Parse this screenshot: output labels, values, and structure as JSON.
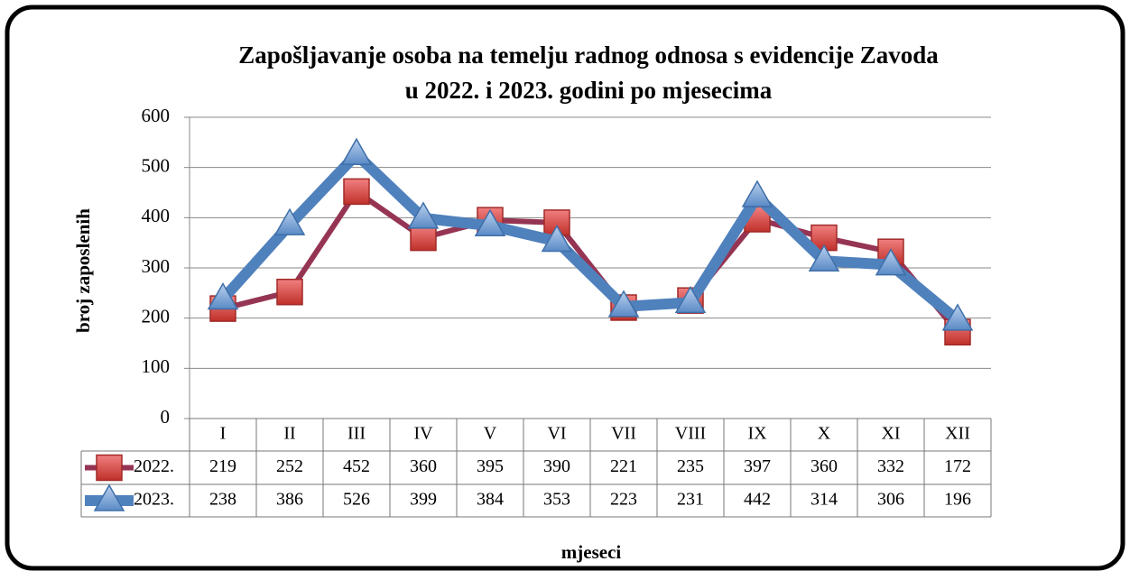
{
  "chart_data": {
    "type": "line",
    "title": [
      "Zapošljavanje osoba na temelju radnog odnosa s evidencije Zavoda",
      "u 2022. i 2023. godini po mjesecima"
    ],
    "y_label": "broj zaposlenih",
    "x_label": "mjeseci",
    "categories": [
      "I",
      "II",
      "III",
      "IV",
      "V",
      "VI",
      "VII",
      "VIII",
      "IX",
      "X",
      "XI",
      "XII"
    ],
    "series": [
      {
        "name": "2022.",
        "color": "#953553",
        "marker": "square",
        "values": [
          219,
          252,
          452,
          360,
          395,
          390,
          221,
          235,
          397,
          360,
          332,
          172
        ]
      },
      {
        "name": "2023.",
        "color": "#4f81bd",
        "marker": "triangle",
        "values": [
          238,
          386,
          526,
          399,
          384,
          353,
          223,
          231,
          442,
          314,
          306,
          196
        ]
      }
    ],
    "ylim": [
      0,
      600
    ],
    "yticks": [
      0,
      100,
      200,
      300,
      400,
      500,
      600
    ],
    "grid": true
  }
}
